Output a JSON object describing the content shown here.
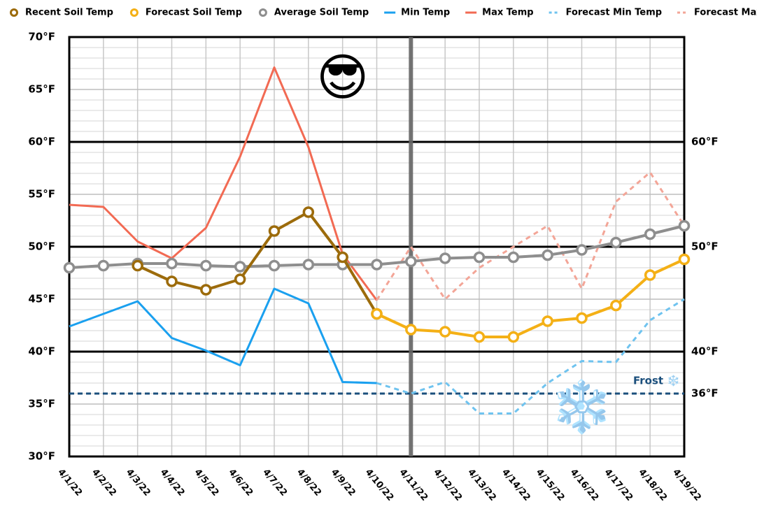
{
  "chart_data": {
    "type": "line",
    "categories": [
      "4/1/22",
      "4/2/22",
      "4/3/22",
      "4/4/22",
      "4/5/22",
      "4/6/22",
      "4/7/22",
      "4/8/22",
      "4/9/22",
      "4/10/22",
      "4/11/22",
      "4/12/22",
      "4/13/22",
      "4/14/22",
      "4/15/22",
      "4/16/22",
      "4/17/22",
      "4/18/22",
      "4/19/22"
    ],
    "series": [
      {
        "name": "Recent Soil Temp",
        "color": "#9c6b0b",
        "marker": true,
        "values": [
          null,
          null,
          48.2,
          46.7,
          45.9,
          46.9,
          51.5,
          53.3,
          49.0,
          43.6,
          null,
          null,
          null,
          null,
          null,
          null,
          null,
          null,
          null
        ]
      },
      {
        "name": "Forecast Soil Temp",
        "color": "#f4b016",
        "marker": true,
        "values": [
          null,
          null,
          null,
          null,
          null,
          null,
          null,
          null,
          null,
          43.6,
          42.1,
          41.9,
          41.4,
          41.4,
          42.9,
          43.2,
          44.4,
          47.3,
          48.8
        ]
      },
      {
        "name": "Average Soil Temp",
        "color": "#8e8e8e",
        "marker": true,
        "values": [
          48.0,
          48.2,
          48.4,
          48.4,
          48.2,
          48.1,
          48.2,
          48.3,
          48.3,
          48.3,
          48.6,
          48.9,
          49.0,
          49.0,
          49.2,
          49.7,
          50.4,
          51.2,
          52.0
        ]
      },
      {
        "name": "Min Temp",
        "color": "#1aa0ef",
        "values": [
          42.4,
          43.6,
          44.8,
          41.3,
          40.1,
          38.7,
          46.0,
          44.6,
          37.1,
          37.0,
          null,
          null,
          null,
          null,
          null,
          null,
          null,
          null,
          null
        ]
      },
      {
        "name": "Max Temp",
        "color": "#f26a53",
        "values": [
          54.0,
          53.8,
          50.5,
          48.9,
          51.8,
          58.6,
          67.1,
          59.5,
          49.3,
          44.9,
          null,
          null,
          null,
          null,
          null,
          null,
          null,
          null,
          null
        ]
      },
      {
        "name": "Forecast Min Temp",
        "color": "#6fc3ef",
        "dash": true,
        "values": [
          null,
          null,
          null,
          null,
          null,
          null,
          null,
          null,
          null,
          37.0,
          36.0,
          37.1,
          34.1,
          34.1,
          37.0,
          39.1,
          39.0,
          43.0,
          45.0
        ]
      },
      {
        "name": "Forecast Max Temp",
        "color": "#f3a597",
        "dash": true,
        "values": [
          null,
          null,
          null,
          null,
          null,
          null,
          null,
          null,
          null,
          44.9,
          50.0,
          45.0,
          48.0,
          50.0,
          52.0,
          46.0,
          54.3,
          57.1,
          52.0
        ]
      }
    ],
    "ylim": [
      30,
      70
    ],
    "yticks": [
      {
        "value": 30,
        "label": "30°F"
      },
      {
        "value": 35,
        "label": "35°F"
      },
      {
        "value": 40,
        "label": "40°F"
      },
      {
        "value": 45,
        "label": "45°F"
      },
      {
        "value": 50,
        "label": "50°F"
      },
      {
        "value": 55,
        "label": "55°F"
      },
      {
        "value": 60,
        "label": "60°F"
      },
      {
        "value": 65,
        "label": "65°F"
      },
      {
        "value": 70,
        "label": "70°F"
      }
    ],
    "y2lim": [
      30,
      70
    ],
    "y2ticks": [
      {
        "value": 40,
        "label": "40°F"
      },
      {
        "value": 50,
        "label": "50°F"
      },
      {
        "value": 60,
        "label": "60°F"
      }
    ],
    "reference_line": {
      "value": 36,
      "axis_label": "36°F",
      "label": "Frost ❄️",
      "color": "#1b4f7c"
    },
    "today": "4/11/22",
    "grid": true,
    "legend": "top",
    "annotations": [
      {
        "text": "😎",
        "category": "4/9/22",
        "value": 65.8
      },
      {
        "text": "❄️",
        "category": "4/16/22",
        "value": 34.4
      }
    ]
  }
}
